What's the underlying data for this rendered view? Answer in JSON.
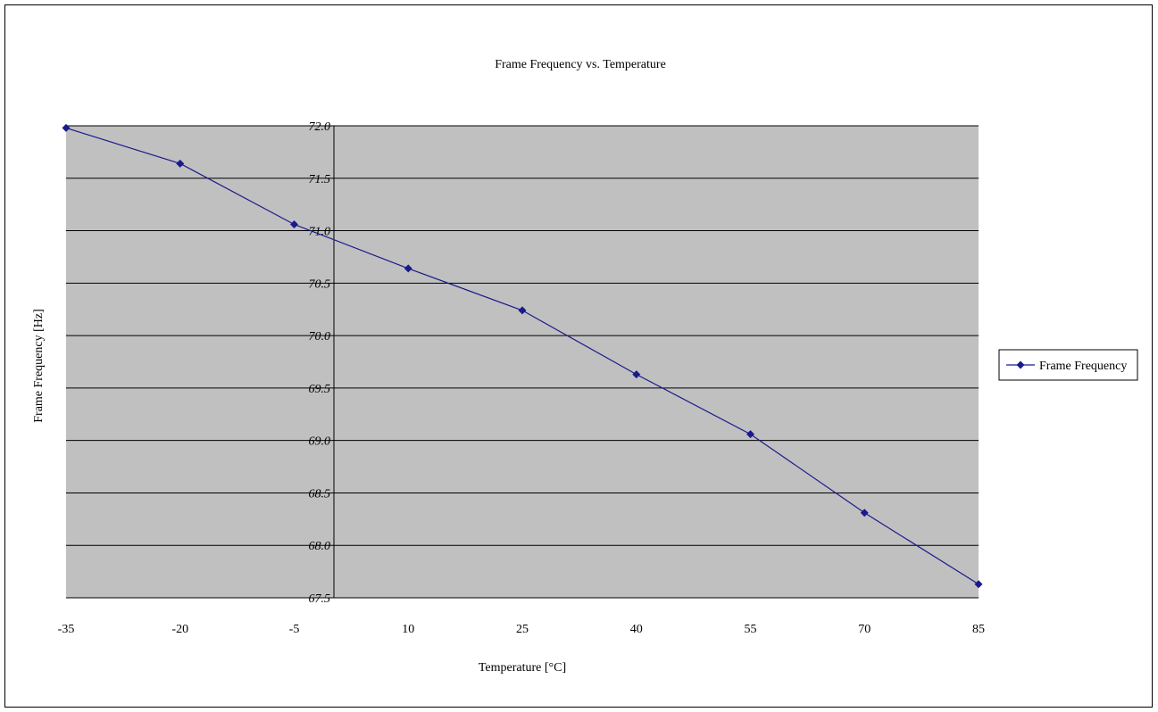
{
  "chart_data": {
    "type": "line",
    "title": "Frame Frequency vs. Temperature",
    "xlabel": "Temperature [°C]",
    "ylabel": "Frame Frequency [Hz]",
    "x_categories": [
      "-35",
      "-20",
      "-5",
      "10",
      "25",
      "40",
      "55",
      "70",
      "85"
    ],
    "x": [
      -35,
      -20,
      -5,
      10,
      25,
      40,
      55,
      70,
      85
    ],
    "y_ticks": [
      "72.0",
      "71.5",
      "71.0",
      "70.5",
      "70.0",
      "69.5",
      "69.0",
      "68.5",
      "68.0",
      "67.5"
    ],
    "ylim": [
      67.5,
      72.0
    ],
    "grid": true,
    "legend_position": "right",
    "series": [
      {
        "name": "Frame Frequency",
        "values": [
          71.98,
          71.64,
          71.06,
          70.64,
          70.24,
          69.63,
          69.06,
          68.31,
          67.63
        ]
      }
    ],
    "colors": {
      "series_line": "#1a1a8c",
      "plot_background": "#c0c0c0",
      "gridline": "#000000"
    },
    "marker": "diamond"
  }
}
